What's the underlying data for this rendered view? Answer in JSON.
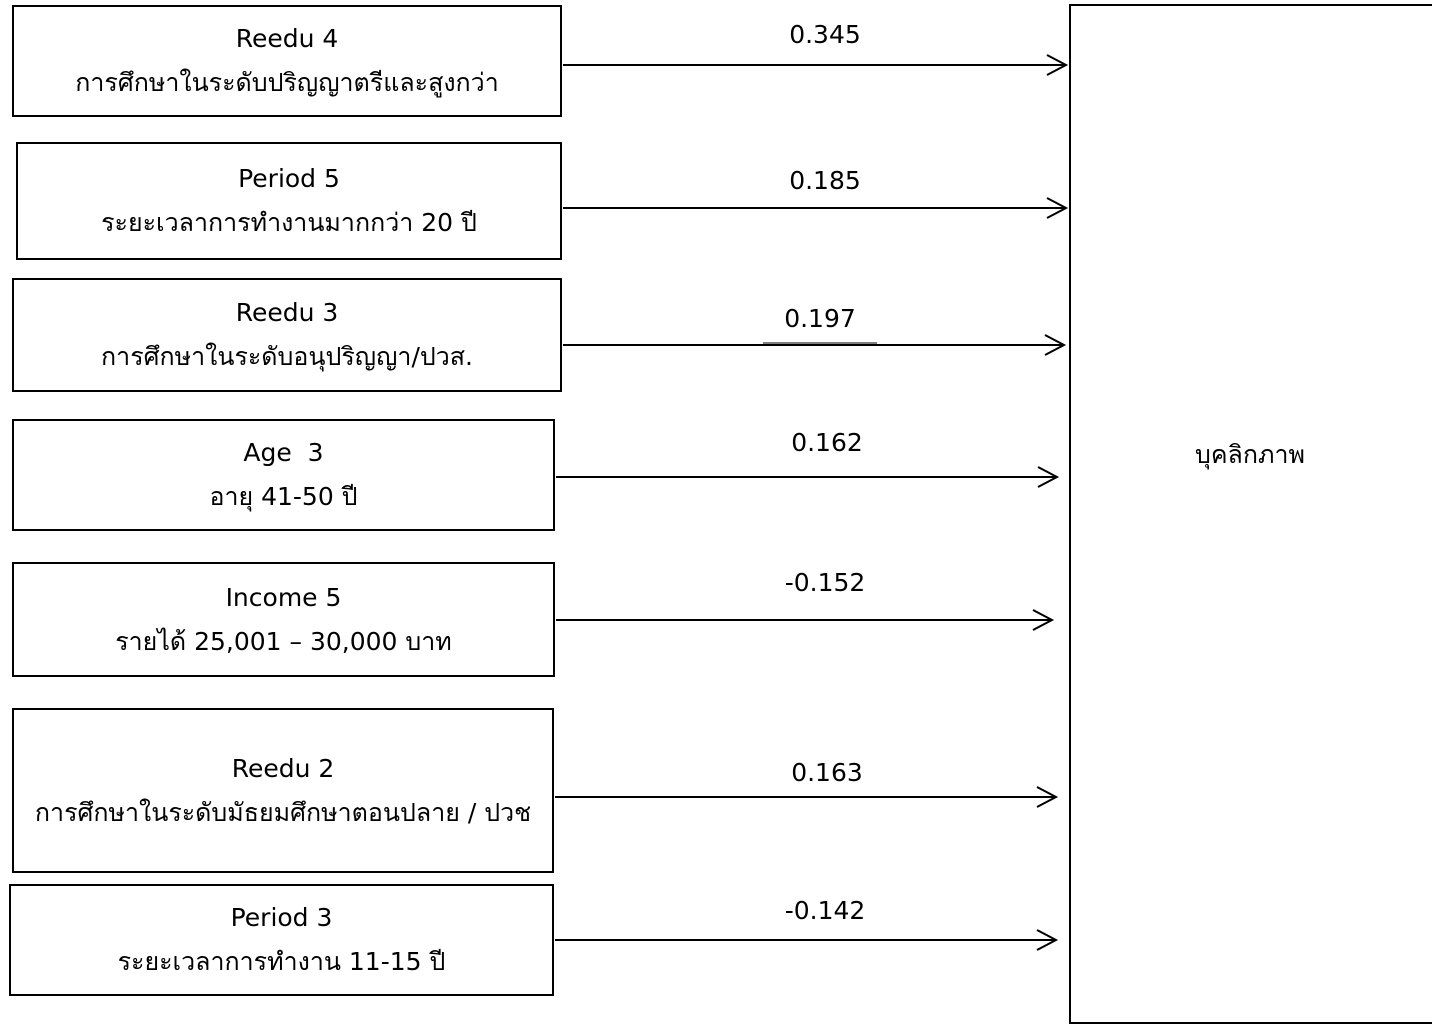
{
  "target": {
    "label": "บุคลิกภาพ"
  },
  "predictors": [
    {
      "code": "Reedu 4",
      "desc": "การศึกษาในระดับปริญญาตรีและสูงกว่า",
      "coef": "0.345"
    },
    {
      "code": "Period 5",
      "desc": "ระยะเวลาการทำงานมากกว่า 20 ปี",
      "coef": "0.185"
    },
    {
      "code": "Reedu 3",
      "desc": "การศึกษาในระดับอนุปริญญา/ปวส.",
      "coef": "0.197"
    },
    {
      "code": "Age  3",
      "desc": "อายุ 41-50 ปี",
      "coef": "0.162"
    },
    {
      "code": "Income 5",
      "desc": "รายได้ 25,001 – 30,000 บาท",
      "coef": "-0.152"
    },
    {
      "code": "Reedu 2",
      "desc": "การศึกษาในระดับมัธยมศึกษาตอนปลาย / ปวช",
      "coef": "0.163"
    },
    {
      "code": "Period 3",
      "desc": "ระยะเวลาการทำงาน 11-15 ปี",
      "coef": "-0.142"
    }
  ]
}
